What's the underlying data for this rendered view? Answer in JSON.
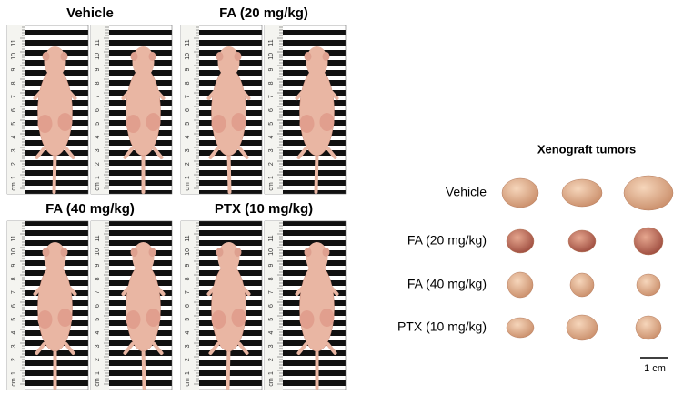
{
  "panels": [
    {
      "title": "Vehicle"
    },
    {
      "title": "FA (20 mg/kg)"
    },
    {
      "title": "FA (40 mg/kg)"
    },
    {
      "title": "PTX (10 mg/kg)"
    }
  ],
  "ruler": {
    "unit": "cm",
    "numbers": [
      "1",
      "2",
      "3",
      "4",
      "5",
      "6",
      "7",
      "8",
      "9",
      "10",
      "11"
    ]
  },
  "tumors": {
    "title": "Xenograft tumors",
    "rows": [
      "Vehicle",
      "FA (20 mg/kg)",
      "FA (40 mg/kg)",
      "PTX (10 mg/kg)"
    ]
  },
  "scale_bar": "1 cm"
}
